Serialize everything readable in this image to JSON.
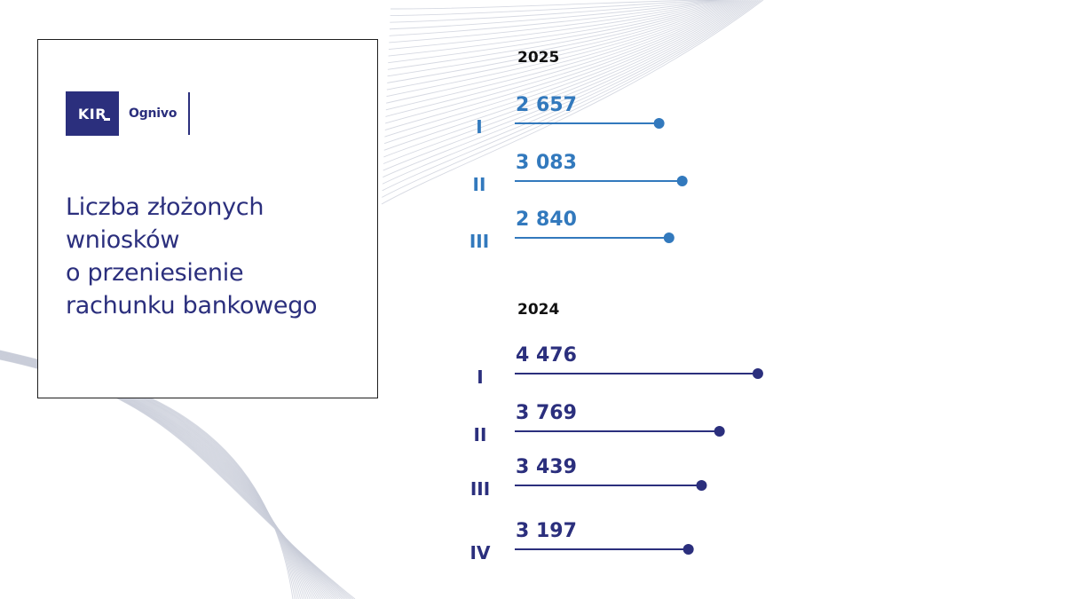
{
  "logo": {
    "brand": "KIR",
    "product": "Ognivo"
  },
  "card": {
    "title_lines": [
      "Liczba złożonych",
      "wniosków",
      "o przeniesienie",
      "rachunku bankowego"
    ]
  },
  "colors": {
    "series_2025": "#3279bd",
    "series_2024": "#2b2f7d",
    "title": "#2b2f7d",
    "background_lines": "#c8ccd8"
  },
  "chart_data": [
    {
      "type": "bar",
      "title": "2025",
      "categories": [
        "I",
        "II",
        "III"
      ],
      "values": [
        2657,
        3083,
        2840
      ],
      "value_labels": [
        "2 657",
        "3 083",
        "2 840"
      ]
    },
    {
      "type": "bar",
      "title": "2024",
      "categories": [
        "I",
        "II",
        "III",
        "IV"
      ],
      "values": [
        4476,
        3769,
        3439,
        3197
      ],
      "value_labels": [
        "4 476",
        "3 769",
        "3 439",
        "3 197"
      ]
    }
  ]
}
